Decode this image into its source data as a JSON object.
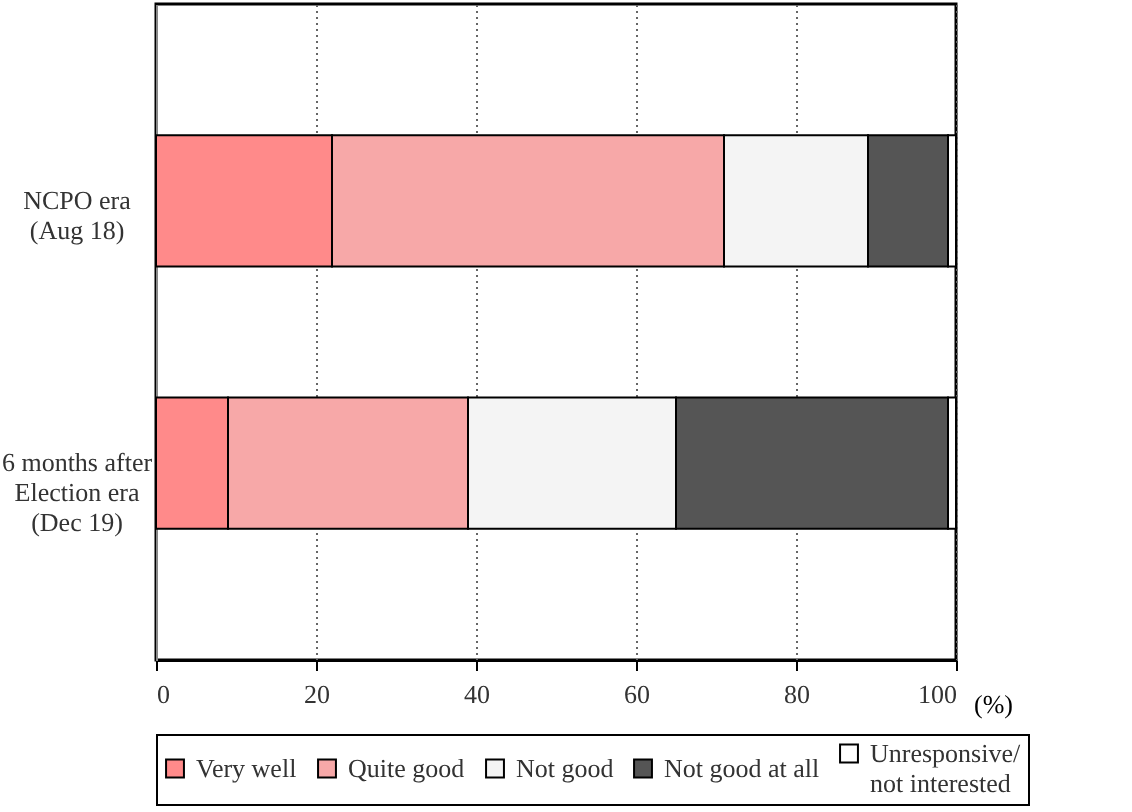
{
  "chart_data": {
    "type": "bar",
    "orientation": "horizontal",
    "stacked": true,
    "categories": [
      "NCPO era\n(Aug 18)",
      "6 months after\nElection era\n(Dec 19)"
    ],
    "series": [
      {
        "name": "Very well",
        "color": "#ff8a8a",
        "values": [
          22,
          9
        ]
      },
      {
        "name": "Quite good",
        "color": "#f7a8a8",
        "values": [
          49,
          30
        ]
      },
      {
        "name": "Not good",
        "color": "#f4f4f4",
        "values": [
          18,
          26
        ]
      },
      {
        "name": "Not good at all",
        "color": "#555555",
        "values": [
          10,
          34
        ]
      },
      {
        "name": "Unresponsive/\nnot interested",
        "color": "#ffffff",
        "values": [
          1,
          1
        ]
      }
    ],
    "xlabel": "(%)",
    "xlim": [
      0,
      100
    ],
    "xticks": [
      0,
      20,
      40,
      60,
      80,
      100
    ],
    "grid": "x",
    "legend": "bottom"
  }
}
